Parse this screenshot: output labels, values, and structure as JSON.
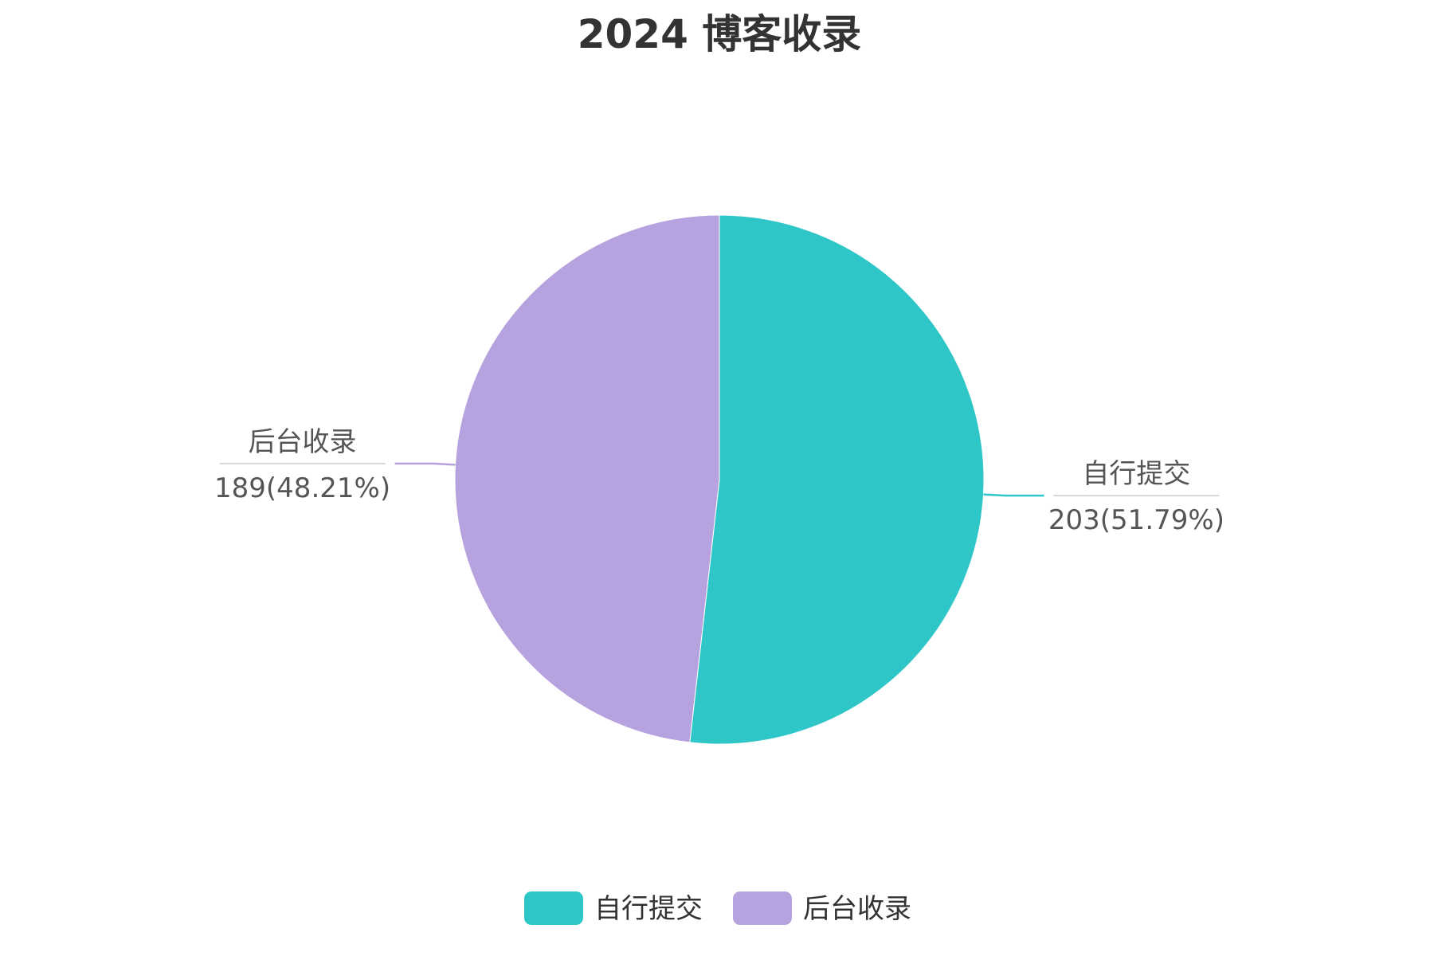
{
  "chart_data": {
    "type": "pie",
    "title": "2024 博客收录",
    "slices": [
      {
        "name": "自行提交",
        "value": 203,
        "percent": "51.79%",
        "color": "#2fc6c8"
      },
      {
        "name": "后台收录",
        "value": 189,
        "percent": "48.21%",
        "color": "#b6a2de"
      }
    ],
    "legend": {
      "placement": "bottom-center",
      "items": [
        "自行提交",
        "后台收录"
      ]
    }
  },
  "colors": {
    "title": "#333333",
    "label_text": "#555555",
    "label_divider": "#cccccc"
  }
}
